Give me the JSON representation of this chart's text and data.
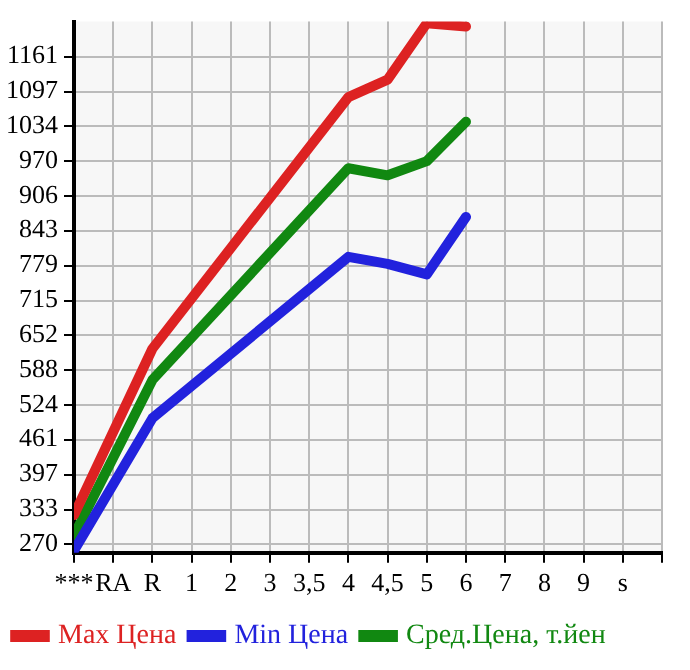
{
  "chart_data": {
    "type": "line",
    "categories": [
      "***",
      "RA",
      "R",
      "1",
      "2",
      "3",
      "3,5",
      "4",
      "4,5",
      "5",
      "6",
      "7",
      "8",
      "9",
      "s"
    ],
    "series": [
      {
        "name": "Max Цена",
        "color": "#dd2222",
        "values": [
          323,
          null,
          627,
          null,
          null,
          null,
          null,
          1087,
          1119,
          1222,
          1216,
          null,
          null,
          null,
          null
        ]
      },
      {
        "name": "Min Цена",
        "color": "#2222dd",
        "values": [
          258,
          null,
          500,
          null,
          null,
          null,
          null,
          795,
          782,
          763,
          868,
          null,
          null,
          null,
          null
        ]
      },
      {
        "name": "Сред.Цена, т.йен",
        "color": "#118811",
        "values": [
          286,
          null,
          570,
          null,
          null,
          null,
          null,
          957,
          944,
          970,
          1042,
          null,
          null,
          null,
          null
        ]
      }
    ],
    "ylim": [
      254,
      1225
    ],
    "yticks": [
      270,
      333,
      397,
      461,
      524,
      588,
      652,
      715,
      779,
      843,
      906,
      970,
      1034,
      1097,
      1161
    ],
    "grid": true,
    "legend": "bottom",
    "marker": "none",
    "line_style": "solid"
  }
}
